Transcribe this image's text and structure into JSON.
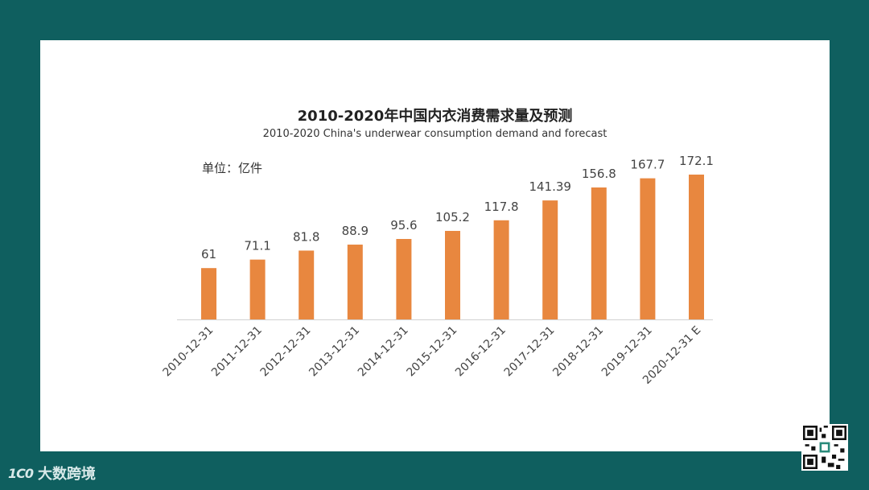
{
  "chart_data": {
    "type": "bar",
    "title": "2010-2020年中国内衣消费需求量及预测",
    "subtitle": "2010-2020 China's underwear consumption demand and forecast",
    "unit_label": "单位：亿件",
    "categories": [
      "2010-12-31",
      "2011-12-31",
      "2012-12-31",
      "2013-12-31",
      "2014-12-31",
      "2015-12-31",
      "2016-12-31",
      "2017-12-31",
      "2018-12-31",
      "2019-12-31",
      "2020-12-31 E"
    ],
    "values": [
      61,
      71.1,
      81.8,
      88.9,
      95.6,
      105.2,
      117.8,
      141.39,
      156.8,
      167.7,
      172.1
    ],
    "value_labels": [
      "61",
      "71.1",
      "81.8",
      "88.9",
      "95.6",
      "105.2",
      "117.8",
      "141.39",
      "156.8",
      "167.7",
      "172.1"
    ],
    "ylim": [
      0,
      172.1
    ],
    "grid": false,
    "legend": "none",
    "bar_color": "#e8873f"
  },
  "footer": {
    "brand_logo": "1C0",
    "brand_name": "大数跨境"
  },
  "colors": {
    "background": "#0f5f5f",
    "axis": "#d0d0d0",
    "text": "#444444"
  }
}
